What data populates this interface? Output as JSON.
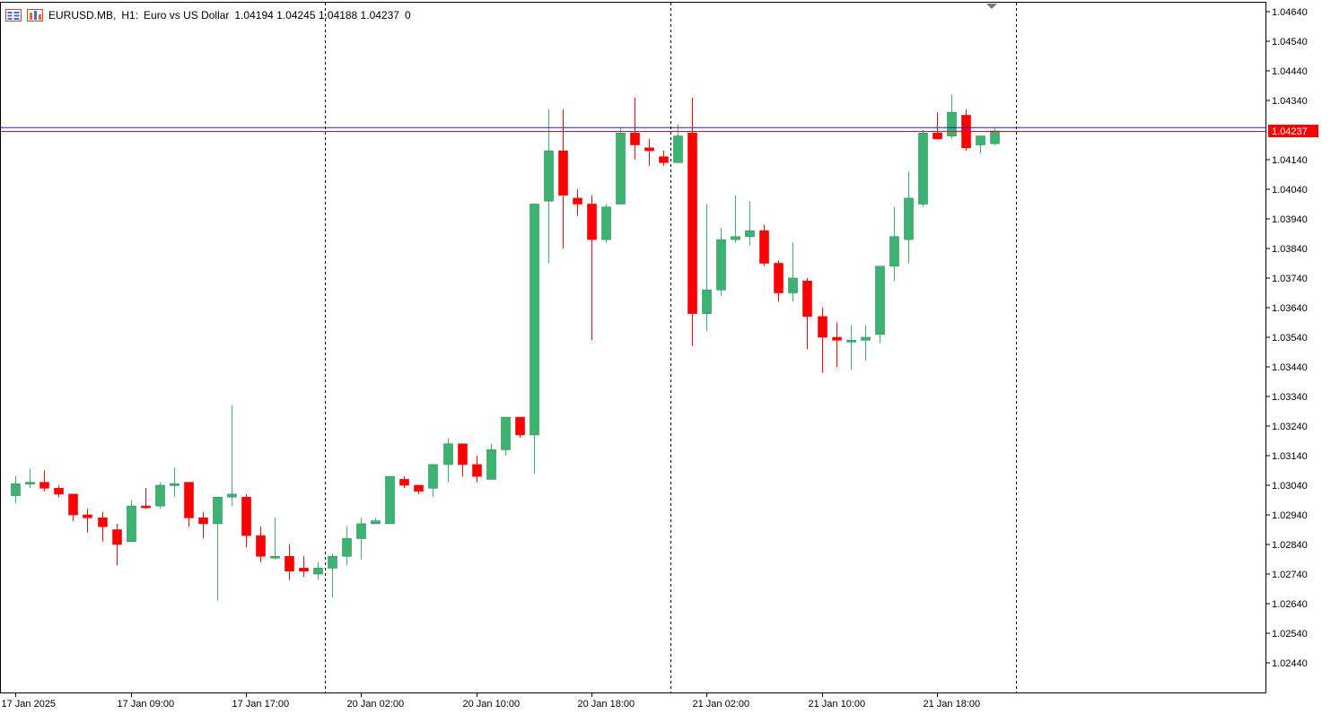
{
  "header": {
    "symbol": "EURUSD.MB",
    "timeframe": "H1:",
    "description": "Euro vs US Dollar",
    "ohlc": "1.04194 1.04245 1.04188 1.04237",
    "extra": "0"
  },
  "current_price_label": "1.04237",
  "colors": {
    "bull": "#3cb371",
    "bear": "#ff0000",
    "bid_line": "#1a1aff",
    "ask_line": "#ff0000",
    "price_tag": "#ff0000",
    "axis": "#000000",
    "separator": "#000000"
  },
  "icons": {
    "menu": "chart-menu-icon",
    "indicator": "indicator-icon"
  },
  "chart_data": {
    "type": "candlestick",
    "symbol": "EURUSD.MB",
    "timeframe": "H1",
    "ylim": [
      1.0234,
      1.0469
    ],
    "y_ticks": [
      "1.04640",
      "1.04540",
      "1.04440",
      "1.04340",
      "1.04237",
      "1.04140",
      "1.04040",
      "1.03940",
      "1.03840",
      "1.03740",
      "1.03640",
      "1.03540",
      "1.03440",
      "1.03340",
      "1.03240",
      "1.03140",
      "1.03040",
      "1.02940",
      "1.02840",
      "1.02740",
      "1.02640",
      "1.02540",
      "1.02440"
    ],
    "y_tick_values": [
      1.0464,
      1.0454,
      1.0444,
      1.0434,
      1.04237,
      1.0414,
      1.0404,
      1.0394,
      1.0384,
      1.0374,
      1.0364,
      1.0354,
      1.0344,
      1.0334,
      1.0324,
      1.0314,
      1.0304,
      1.0294,
      1.0284,
      1.0274,
      1.0264,
      1.0254,
      1.0244
    ],
    "x_labels": [
      {
        "text": "17 Jan 2025",
        "index": 0
      },
      {
        "text": "17 Jan 09:00",
        "index": 8
      },
      {
        "text": "17 Jan 17:00",
        "index": 16
      },
      {
        "text": "20 Jan 02:00",
        "index": 24
      },
      {
        "text": "20 Jan 10:00",
        "index": 32
      },
      {
        "text": "20 Jan 18:00",
        "index": 40
      },
      {
        "text": "21 Jan 02:00",
        "index": 48
      },
      {
        "text": "21 Jan 10:00",
        "index": 56
      },
      {
        "text": "21 Jan 18:00",
        "index": 64
      }
    ],
    "day_separator_indices": [
      21.5,
      45.5,
      69.5
    ],
    "bid": 1.04237,
    "ask": 1.04247,
    "candles": [
      {
        "o": 1.03005,
        "h": 1.0307,
        "l": 1.0298,
        "c": 1.03045
      },
      {
        "o": 1.03045,
        "h": 1.03095,
        "l": 1.0303,
        "c": 1.0305
      },
      {
        "o": 1.0305,
        "h": 1.0309,
        "l": 1.0302,
        "c": 1.0303
      },
      {
        "o": 1.0303,
        "h": 1.0304,
        "l": 1.03,
        "c": 1.0301
      },
      {
        "o": 1.0301,
        "h": 1.0301,
        "l": 1.0292,
        "c": 1.0294
      },
      {
        "o": 1.0294,
        "h": 1.0296,
        "l": 1.0288,
        "c": 1.0293
      },
      {
        "o": 1.0293,
        "h": 1.0295,
        "l": 1.0285,
        "c": 1.029
      },
      {
        "o": 1.0289,
        "h": 1.0291,
        "l": 1.0277,
        "c": 1.0284
      },
      {
        "o": 1.0285,
        "h": 1.0299,
        "l": 1.0285,
        "c": 1.0297
      },
      {
        "o": 1.0297,
        "h": 1.0303,
        "l": 1.0296,
        "c": 1.02965
      },
      {
        "o": 1.0297,
        "h": 1.0305,
        "l": 1.0296,
        "c": 1.0304
      },
      {
        "o": 1.0304,
        "h": 1.031,
        "l": 1.03,
        "c": 1.03045
      },
      {
        "o": 1.0305,
        "h": 1.0305,
        "l": 1.029,
        "c": 1.0293
      },
      {
        "o": 1.0293,
        "h": 1.0295,
        "l": 1.0286,
        "c": 1.0291
      },
      {
        "o": 1.0291,
        "h": 1.03,
        "l": 1.0265,
        "c": 1.03
      },
      {
        "o": 1.03,
        "h": 1.0331,
        "l": 1.0297,
        "c": 1.0301
      },
      {
        "o": 1.03,
        "h": 1.0301,
        "l": 1.0283,
        "c": 1.0287
      },
      {
        "o": 1.0287,
        "h": 1.029,
        "l": 1.0278,
        "c": 1.028
      },
      {
        "o": 1.028,
        "h": 1.0293,
        "l": 1.0279,
        "c": 1.028
      },
      {
        "o": 1.028,
        "h": 1.0284,
        "l": 1.0272,
        "c": 1.0275
      },
      {
        "o": 1.0276,
        "h": 1.028,
        "l": 1.0273,
        "c": 1.0275
      },
      {
        "o": 1.0274,
        "h": 1.0278,
        "l": 1.0272,
        "c": 1.0276
      },
      {
        "o": 1.0276,
        "h": 1.0281,
        "l": 1.0266,
        "c": 1.028
      },
      {
        "o": 1.028,
        "h": 1.029,
        "l": 1.0277,
        "c": 1.0286
      },
      {
        "o": 1.0286,
        "h": 1.0293,
        "l": 1.0279,
        "c": 1.0291
      },
      {
        "o": 1.0291,
        "h": 1.0293,
        "l": 1.0291,
        "c": 1.0292
      },
      {
        "o": 1.0291,
        "h": 1.0307,
        "l": 1.0291,
        "c": 1.0307
      },
      {
        "o": 1.0306,
        "h": 1.0307,
        "l": 1.0303,
        "c": 1.0304
      },
      {
        "o": 1.0304,
        "h": 1.0304,
        "l": 1.0301,
        "c": 1.0302
      },
      {
        "o": 1.0303,
        "h": 1.0311,
        "l": 1.03,
        "c": 1.0311
      },
      {
        "o": 1.0311,
        "h": 1.032,
        "l": 1.0305,
        "c": 1.0318
      },
      {
        "o": 1.0318,
        "h": 1.0318,
        "l": 1.0307,
        "c": 1.0311
      },
      {
        "o": 1.0311,
        "h": 1.0314,
        "l": 1.0305,
        "c": 1.0307
      },
      {
        "o": 1.0306,
        "h": 1.0318,
        "l": 1.0306,
        "c": 1.0316
      },
      {
        "o": 1.0316,
        "h": 1.0327,
        "l": 1.0314,
        "c": 1.0327
      },
      {
        "o": 1.0327,
        "h": 1.0327,
        "l": 1.032,
        "c": 1.0321
      },
      {
        "o": 1.0321,
        "h": 1.0399,
        "l": 1.0308,
        "c": 1.0399
      },
      {
        "o": 1.04,
        "h": 1.0431,
        "l": 1.0379,
        "c": 1.0417
      },
      {
        "o": 1.0417,
        "h": 1.0431,
        "l": 1.0384,
        "c": 1.0402
      },
      {
        "o": 1.0401,
        "h": 1.0404,
        "l": 1.0395,
        "c": 1.0399
      },
      {
        "o": 1.0399,
        "h": 1.0402,
        "l": 1.0353,
        "c": 1.0387
      },
      {
        "o": 1.0387,
        "h": 1.0399,
        "l": 1.0386,
        "c": 1.0398
      },
      {
        "o": 1.0399,
        "h": 1.0425,
        "l": 1.0399,
        "c": 1.0423
      },
      {
        "o": 1.0423,
        "h": 1.0435,
        "l": 1.0414,
        "c": 1.0419
      },
      {
        "o": 1.0418,
        "h": 1.0421,
        "l": 1.0412,
        "c": 1.0417
      },
      {
        "o": 1.0415,
        "h": 1.0417,
        "l": 1.0412,
        "c": 1.0413
      },
      {
        "o": 1.0413,
        "h": 1.0426,
        "l": 1.0413,
        "c": 1.0422
      },
      {
        "o": 1.0423,
        "h": 1.0435,
        "l": 1.0351,
        "c": 1.0362
      },
      {
        "o": 1.0362,
        "h": 1.0399,
        "l": 1.0356,
        "c": 1.037
      },
      {
        "o": 1.037,
        "h": 1.0391,
        "l": 1.0368,
        "c": 1.0387
      },
      {
        "o": 1.0387,
        "h": 1.0402,
        "l": 1.0386,
        "c": 1.0388
      },
      {
        "o": 1.0388,
        "h": 1.04,
        "l": 1.0385,
        "c": 1.039
      },
      {
        "o": 1.039,
        "h": 1.0392,
        "l": 1.0378,
        "c": 1.0379
      },
      {
        "o": 1.0379,
        "h": 1.038,
        "l": 1.0366,
        "c": 1.0369
      },
      {
        "o": 1.0369,
        "h": 1.0386,
        "l": 1.0366,
        "c": 1.0374
      },
      {
        "o": 1.0373,
        "h": 1.0374,
        "l": 1.035,
        "c": 1.0361
      },
      {
        "o": 1.0361,
        "h": 1.0364,
        "l": 1.0342,
        "c": 1.0354
      },
      {
        "o": 1.0354,
        "h": 1.0359,
        "l": 1.0344,
        "c": 1.0353
      },
      {
        "o": 1.0353,
        "h": 1.0358,
        "l": 1.0343,
        "c": 1.0353
      },
      {
        "o": 1.0353,
        "h": 1.0358,
        "l": 1.0346,
        "c": 1.0354
      },
      {
        "o": 1.0355,
        "h": 1.0378,
        "l": 1.0352,
        "c": 1.0378
      },
      {
        "o": 1.0378,
        "h": 1.0398,
        "l": 1.0373,
        "c": 1.0388
      },
      {
        "o": 1.0387,
        "h": 1.041,
        "l": 1.0379,
        "c": 1.0401
      },
      {
        "o": 1.0399,
        "h": 1.0424,
        "l": 1.0398,
        "c": 1.0423
      },
      {
        "o": 1.0423,
        "h": 1.043,
        "l": 1.0421,
        "c": 1.0421
      },
      {
        "o": 1.0422,
        "h": 1.0436,
        "l": 1.0421,
        "c": 1.043
      },
      {
        "o": 1.0429,
        "h": 1.0431,
        "l": 1.0417,
        "c": 1.0418
      },
      {
        "o": 1.0419,
        "h": 1.0422,
        "l": 1.0416,
        "c": 1.0422
      },
      {
        "o": 1.04194,
        "h": 1.04245,
        "l": 1.04188,
        "c": 1.04237
      }
    ]
  }
}
